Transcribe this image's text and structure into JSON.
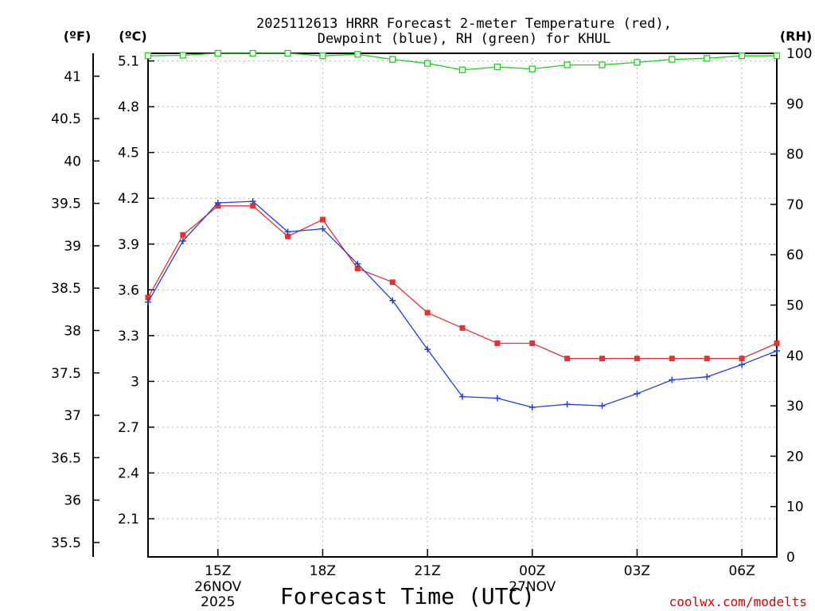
{
  "chart_data": {
    "type": "line",
    "title_line1": "2025112613 HRRR Forecast 2-meter Temperature (red),",
    "title_line2": "Dewpoint (blue), RH (green) for KHUL",
    "xlabel": "Forecast Time (UTC)",
    "credit": "coolwx.com/modelts",
    "unit_f": "(ºF)",
    "unit_c": "(ºC)",
    "unit_rh": "(RH)",
    "x_range": [
      13,
      31
    ],
    "x_ticks": [
      {
        "x": 15,
        "label": "15Z"
      },
      {
        "x": 18,
        "label": "18Z"
      },
      {
        "x": 21,
        "label": "21Z"
      },
      {
        "x": 24,
        "label": "00Z"
      },
      {
        "x": 27,
        "label": "03Z"
      },
      {
        "x": 30,
        "label": "06Z"
      }
    ],
    "date_labels": [
      {
        "x": 15,
        "lines": [
          "26NOV",
          "2025"
        ]
      },
      {
        "x": 24,
        "lines": [
          "27NOV"
        ]
      }
    ],
    "c_range": [
      1.85,
      5.15
    ],
    "c_ticks": [
      2.1,
      2.4,
      2.7,
      3,
      3.3,
      3.6,
      3.9,
      4.2,
      4.5,
      4.8,
      5.1
    ],
    "c_tick_labels": [
      "2.1",
      "2.4",
      "2.7",
      "3",
      "3.3",
      "3.6",
      "3.9",
      "4.2",
      "4.5",
      "4.8",
      "5.1"
    ],
    "f_ticks": [
      35.5,
      36,
      36.5,
      37,
      37.5,
      38,
      38.5,
      39,
      39.5,
      40,
      40.5,
      41
    ],
    "f_tick_labels": [
      "35.5",
      "36",
      "36.5",
      "37",
      "37.5",
      "38",
      "38.5",
      "39",
      "39.5",
      "40",
      "40.5",
      "41"
    ],
    "rh_range": [
      0,
      100
    ],
    "rh_ticks": [
      0,
      10,
      20,
      30,
      40,
      50,
      60,
      70,
      80,
      90,
      100
    ],
    "rh_tick_labels": [
      "0",
      "10",
      "20",
      "30",
      "40",
      "50",
      "60",
      "70",
      "80",
      "90",
      "100"
    ],
    "hours": [
      13,
      14,
      15,
      16,
      17,
      18,
      19,
      20,
      21,
      22,
      23,
      24,
      25,
      26,
      27,
      28,
      29,
      30,
      31
    ],
    "series": [
      {
        "name": "Temperature",
        "unit": "C",
        "color": "#e83030",
        "values": [
          3.55,
          3.96,
          4.15,
          4.15,
          3.95,
          4.06,
          3.74,
          3.65,
          3.45,
          3.35,
          3.25,
          3.25,
          3.15,
          3.15,
          3.15,
          3.15,
          3.15,
          3.15,
          3.25
        ]
      },
      {
        "name": "Dewpoint",
        "unit": "C",
        "color": "#2040e0",
        "values": [
          3.52,
          3.92,
          4.17,
          4.18,
          3.98,
          4.0,
          3.77,
          3.53,
          3.21,
          2.9,
          2.89,
          2.83,
          2.85,
          2.84,
          2.92,
          3.01,
          3.03,
          3.11,
          3.2
        ]
      },
      {
        "name": "RH",
        "unit": "%",
        "color": "#20d020",
        "values": [
          99.5,
          99.6,
          100,
          100,
          100,
          99.5,
          99.8,
          98.8,
          98,
          96.7,
          97.3,
          96.9,
          97.7,
          97.7,
          98.2,
          98.8,
          99,
          99.5,
          99.5
        ]
      }
    ]
  }
}
